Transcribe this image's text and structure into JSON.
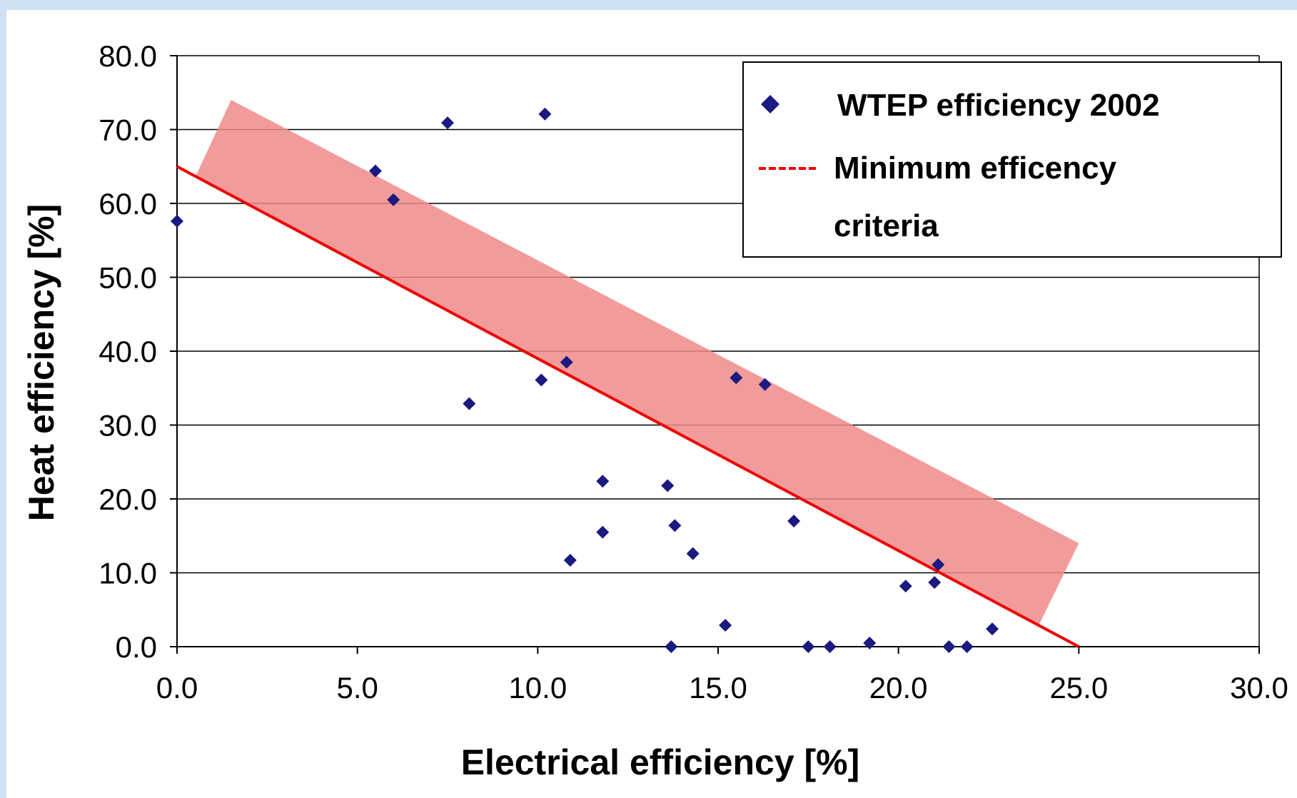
{
  "colors": {
    "points": "#1a1a80",
    "min_line": "#ee0000",
    "band_fill": "#f08a8a",
    "grid": "#000000",
    "frame_accent": "#cfe2f3"
  },
  "chart_data": {
    "type": "scatter",
    "title": "",
    "xlabel": "Electrical efficiency [%]",
    "ylabel": "Heat efficiency [%]",
    "xlim": [
      0,
      30
    ],
    "ylim": [
      0,
      80
    ],
    "x_ticks": [
      "0.0",
      "5.0",
      "10.0",
      "15.0",
      "20.0",
      "25.0",
      "30.0"
    ],
    "y_ticks": [
      "0.0",
      "10.0",
      "20.0",
      "30.0",
      "40.0",
      "50.0",
      "60.0",
      "70.0",
      "80.0"
    ],
    "grid": "horizontal",
    "legend_position": "top-right",
    "series": [
      {
        "name": "WTEP efficiency 2002",
        "kind": "markers",
        "marker": "diamond",
        "points": [
          [
            0.0,
            57.6
          ],
          [
            5.5,
            64.4
          ],
          [
            6.0,
            60.5
          ],
          [
            7.5,
            70.9
          ],
          [
            8.1,
            32.9
          ],
          [
            10.1,
            36.1
          ],
          [
            10.2,
            72.1
          ],
          [
            10.8,
            38.5
          ],
          [
            10.9,
            11.7
          ],
          [
            11.8,
            22.4
          ],
          [
            11.8,
            15.5
          ],
          [
            13.6,
            21.8
          ],
          [
            13.7,
            0.0
          ],
          [
            13.8,
            16.4
          ],
          [
            14.3,
            12.6
          ],
          [
            15.2,
            2.9
          ],
          [
            15.5,
            36.4
          ],
          [
            16.3,
            35.5
          ],
          [
            17.1,
            17.0
          ],
          [
            17.5,
            0.0
          ],
          [
            18.1,
            0.0
          ],
          [
            19.2,
            0.5
          ],
          [
            20.2,
            8.2
          ],
          [
            21.0,
            8.7
          ],
          [
            21.1,
            11.1
          ],
          [
            21.4,
            0.0
          ],
          [
            21.9,
            0.0
          ],
          [
            22.6,
            2.4
          ]
        ]
      },
      {
        "name": "Minimum efficency criteria",
        "kind": "line",
        "points": [
          [
            0.0,
            65.0
          ],
          [
            25.0,
            0.0
          ]
        ]
      }
    ],
    "annotations": [
      {
        "kind": "shaded-band",
        "corners": [
          [
            0.5,
            63.5
          ],
          [
            1.5,
            74.0
          ],
          [
            25.0,
            14.0
          ],
          [
            23.9,
            3.0
          ]
        ]
      }
    ]
  }
}
